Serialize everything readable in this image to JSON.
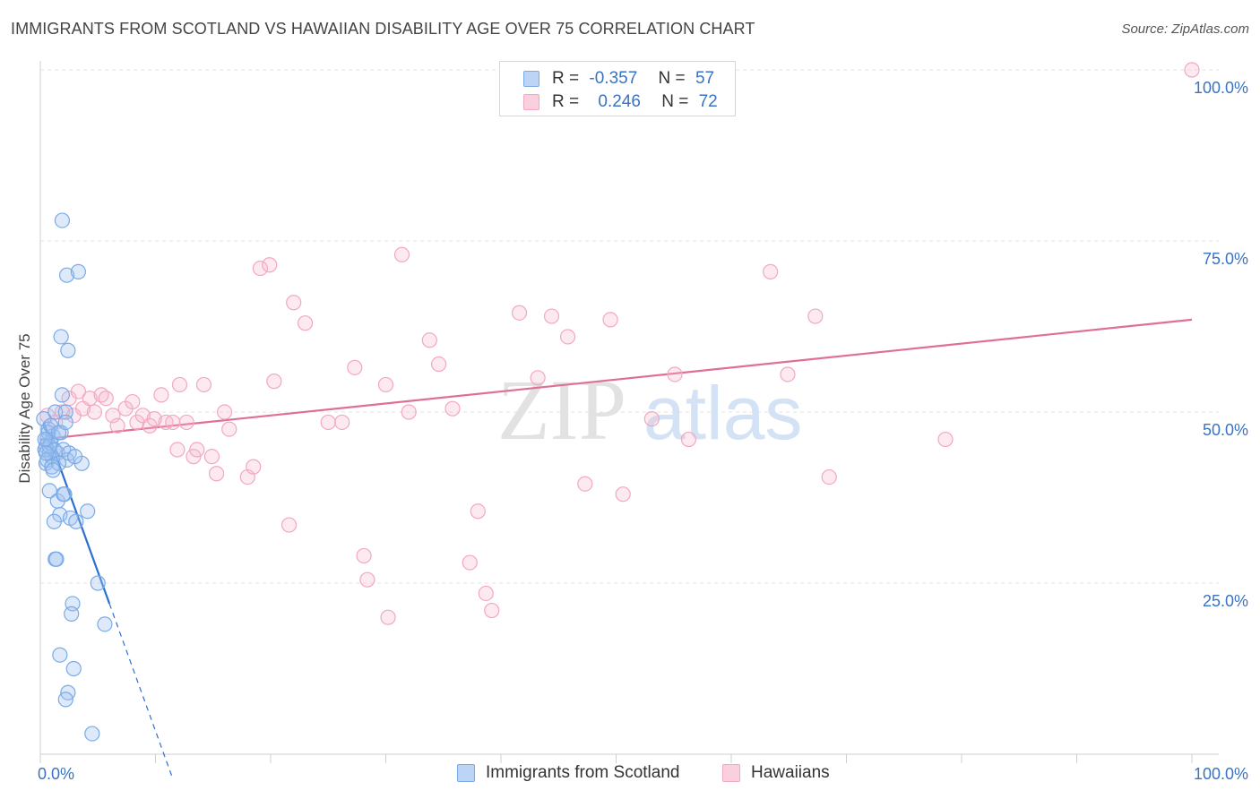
{
  "title": "IMMIGRANTS FROM SCOTLAND VS HAWAIIAN DISABILITY AGE OVER 75 CORRELATION CHART",
  "source": "Source: ZipAtlas.com",
  "watermark": {
    "zip": "ZIP",
    "atlas": "atlas"
  },
  "legend": {
    "rows": [
      {
        "r_label": "R =",
        "r_value": "-0.357",
        "n_label": "N =",
        "n_value": "57"
      },
      {
        "r_label": "R =",
        "r_value": "0.246",
        "n_label": "N =",
        "n_value": "72"
      }
    ]
  },
  "chart_data": {
    "type": "scatter",
    "title": "IMMIGRANTS FROM SCOTLAND VS HAWAIIAN DISABILITY AGE OVER 75 CORRELATION CHART",
    "xlabel": "",
    "ylabel": "Disability Age Over 75",
    "xlim": [
      0,
      100
    ],
    "ylim": [
      0,
      100
    ],
    "x_tick_labels": [
      "0.0%",
      "100.0%"
    ],
    "y_tick_labels": [
      "25.0%",
      "50.0%",
      "75.0%",
      "100.0%"
    ],
    "y_ticks": [
      25,
      50,
      75,
      100
    ],
    "grid": true,
    "legend_placement": "top-center",
    "series": [
      {
        "name": "Immigrants from Scotland",
        "color": "#7aaae8",
        "line_color": "#2d6fd0",
        "trend": {
          "x0": 0.3,
          "y0": 48.5,
          "x1": 6.0,
          "y1": 22.0,
          "x_dash_end": 11.5
        },
        "points": [
          [
            0.3,
            49.0
          ],
          [
            0.5,
            45.0
          ],
          [
            0.4,
            44.5
          ],
          [
            0.6,
            46.0
          ],
          [
            0.7,
            47.5
          ],
          [
            0.8,
            44.0
          ],
          [
            0.9,
            45.5
          ],
          [
            1.0,
            43.5
          ],
          [
            0.5,
            42.5
          ],
          [
            0.6,
            43.0
          ],
          [
            1.2,
            44.5
          ],
          [
            1.5,
            44.0
          ],
          [
            0.8,
            45.0
          ],
          [
            1.1,
            46.5
          ],
          [
            0.7,
            47.0
          ],
          [
            0.9,
            48.0
          ],
          [
            1.3,
            50.0
          ],
          [
            1.8,
            47.0
          ],
          [
            2.0,
            44.5
          ],
          [
            2.3,
            43.0
          ],
          [
            1.0,
            42.0
          ],
          [
            1.6,
            42.5
          ],
          [
            1.9,
            52.5
          ],
          [
            2.2,
            50.0
          ],
          [
            1.8,
            61.0
          ],
          [
            2.4,
            59.0
          ],
          [
            2.3,
            70.0
          ],
          [
            3.3,
            70.5
          ],
          [
            1.9,
            78.0
          ],
          [
            0.8,
            38.5
          ],
          [
            1.5,
            37.0
          ],
          [
            2.1,
            38.0
          ],
          [
            2.0,
            38.0
          ],
          [
            1.7,
            35.0
          ],
          [
            2.6,
            34.5
          ],
          [
            3.1,
            34.0
          ],
          [
            1.2,
            34.0
          ],
          [
            4.1,
            35.5
          ],
          [
            1.3,
            28.5
          ],
          [
            1.4,
            28.5
          ],
          [
            2.8,
            22.0
          ],
          [
            2.7,
            20.5
          ],
          [
            5.0,
            25.0
          ],
          [
            5.6,
            19.0
          ],
          [
            1.7,
            14.5
          ],
          [
            2.9,
            12.5
          ],
          [
            2.4,
            9.0
          ],
          [
            2.2,
            8.0
          ],
          [
            4.5,
            3.0
          ],
          [
            3.6,
            42.5
          ],
          [
            1.1,
            41.5
          ],
          [
            0.4,
            46.0
          ],
          [
            0.5,
            44.0
          ],
          [
            1.6,
            47.0
          ],
          [
            2.5,
            44.0
          ],
          [
            3.0,
            43.5
          ],
          [
            2.2,
            48.5
          ]
        ]
      },
      {
        "name": "Hawaiians",
        "color": "#f3a7c0",
        "line_color": "#e06f97",
        "trend": {
          "x0": 0.0,
          "y0": 46.0,
          "x1": 100.0,
          "y1": 63.5
        },
        "points": [
          [
            0.6,
            49.5
          ],
          [
            1.3,
            48.5
          ],
          [
            1.9,
            50.0
          ],
          [
            2.5,
            52.0
          ],
          [
            2.9,
            49.5
          ],
          [
            3.3,
            53.0
          ],
          [
            3.7,
            50.5
          ],
          [
            4.3,
            52.0
          ],
          [
            4.7,
            50.0
          ],
          [
            5.3,
            52.5
          ],
          [
            5.7,
            52.0
          ],
          [
            6.3,
            49.5
          ],
          [
            6.7,
            48.0
          ],
          [
            7.4,
            50.5
          ],
          [
            8.0,
            51.5
          ],
          [
            8.4,
            48.5
          ],
          [
            8.9,
            49.5
          ],
          [
            9.5,
            48.0
          ],
          [
            9.9,
            49.0
          ],
          [
            10.5,
            52.5
          ],
          [
            10.9,
            48.5
          ],
          [
            11.5,
            48.5
          ],
          [
            12.1,
            54.0
          ],
          [
            11.9,
            44.5
          ],
          [
            12.7,
            48.5
          ],
          [
            13.3,
            43.5
          ],
          [
            13.6,
            44.5
          ],
          [
            14.2,
            54.0
          ],
          [
            14.9,
            43.5
          ],
          [
            15.3,
            41.0
          ],
          [
            16.0,
            50.0
          ],
          [
            16.4,
            47.5
          ],
          [
            18.0,
            40.5
          ],
          [
            18.5,
            42.0
          ],
          [
            19.1,
            71.0
          ],
          [
            19.9,
            71.5
          ],
          [
            20.3,
            54.5
          ],
          [
            22.0,
            66.0
          ],
          [
            23.0,
            63.0
          ],
          [
            21.6,
            33.5
          ],
          [
            25.0,
            48.5
          ],
          [
            26.2,
            48.5
          ],
          [
            27.3,
            56.5
          ],
          [
            28.1,
            29.0
          ],
          [
            28.4,
            25.5
          ],
          [
            30.0,
            54.0
          ],
          [
            30.2,
            20.0
          ],
          [
            31.4,
            73.0
          ],
          [
            32.0,
            50.0
          ],
          [
            33.8,
            60.5
          ],
          [
            34.6,
            57.0
          ],
          [
            35.8,
            50.5
          ],
          [
            37.3,
            28.0
          ],
          [
            38.0,
            35.5
          ],
          [
            38.7,
            23.5
          ],
          [
            39.2,
            21.0
          ],
          [
            41.6,
            64.5
          ],
          [
            43.2,
            55.0
          ],
          [
            44.4,
            64.0
          ],
          [
            45.8,
            61.0
          ],
          [
            47.3,
            39.5
          ],
          [
            49.5,
            63.5
          ],
          [
            50.6,
            38.0
          ],
          [
            53.1,
            49.0
          ],
          [
            55.1,
            55.5
          ],
          [
            56.3,
            46.0
          ],
          [
            63.4,
            70.5
          ],
          [
            64.9,
            55.5
          ],
          [
            67.3,
            64.0
          ],
          [
            68.5,
            40.5
          ],
          [
            78.6,
            46.0
          ],
          [
            100.0,
            100.0
          ]
        ]
      }
    ]
  },
  "bottom_legend": [
    {
      "label": "Immigrants from Scotland"
    },
    {
      "label": "Hawaiians"
    }
  ]
}
